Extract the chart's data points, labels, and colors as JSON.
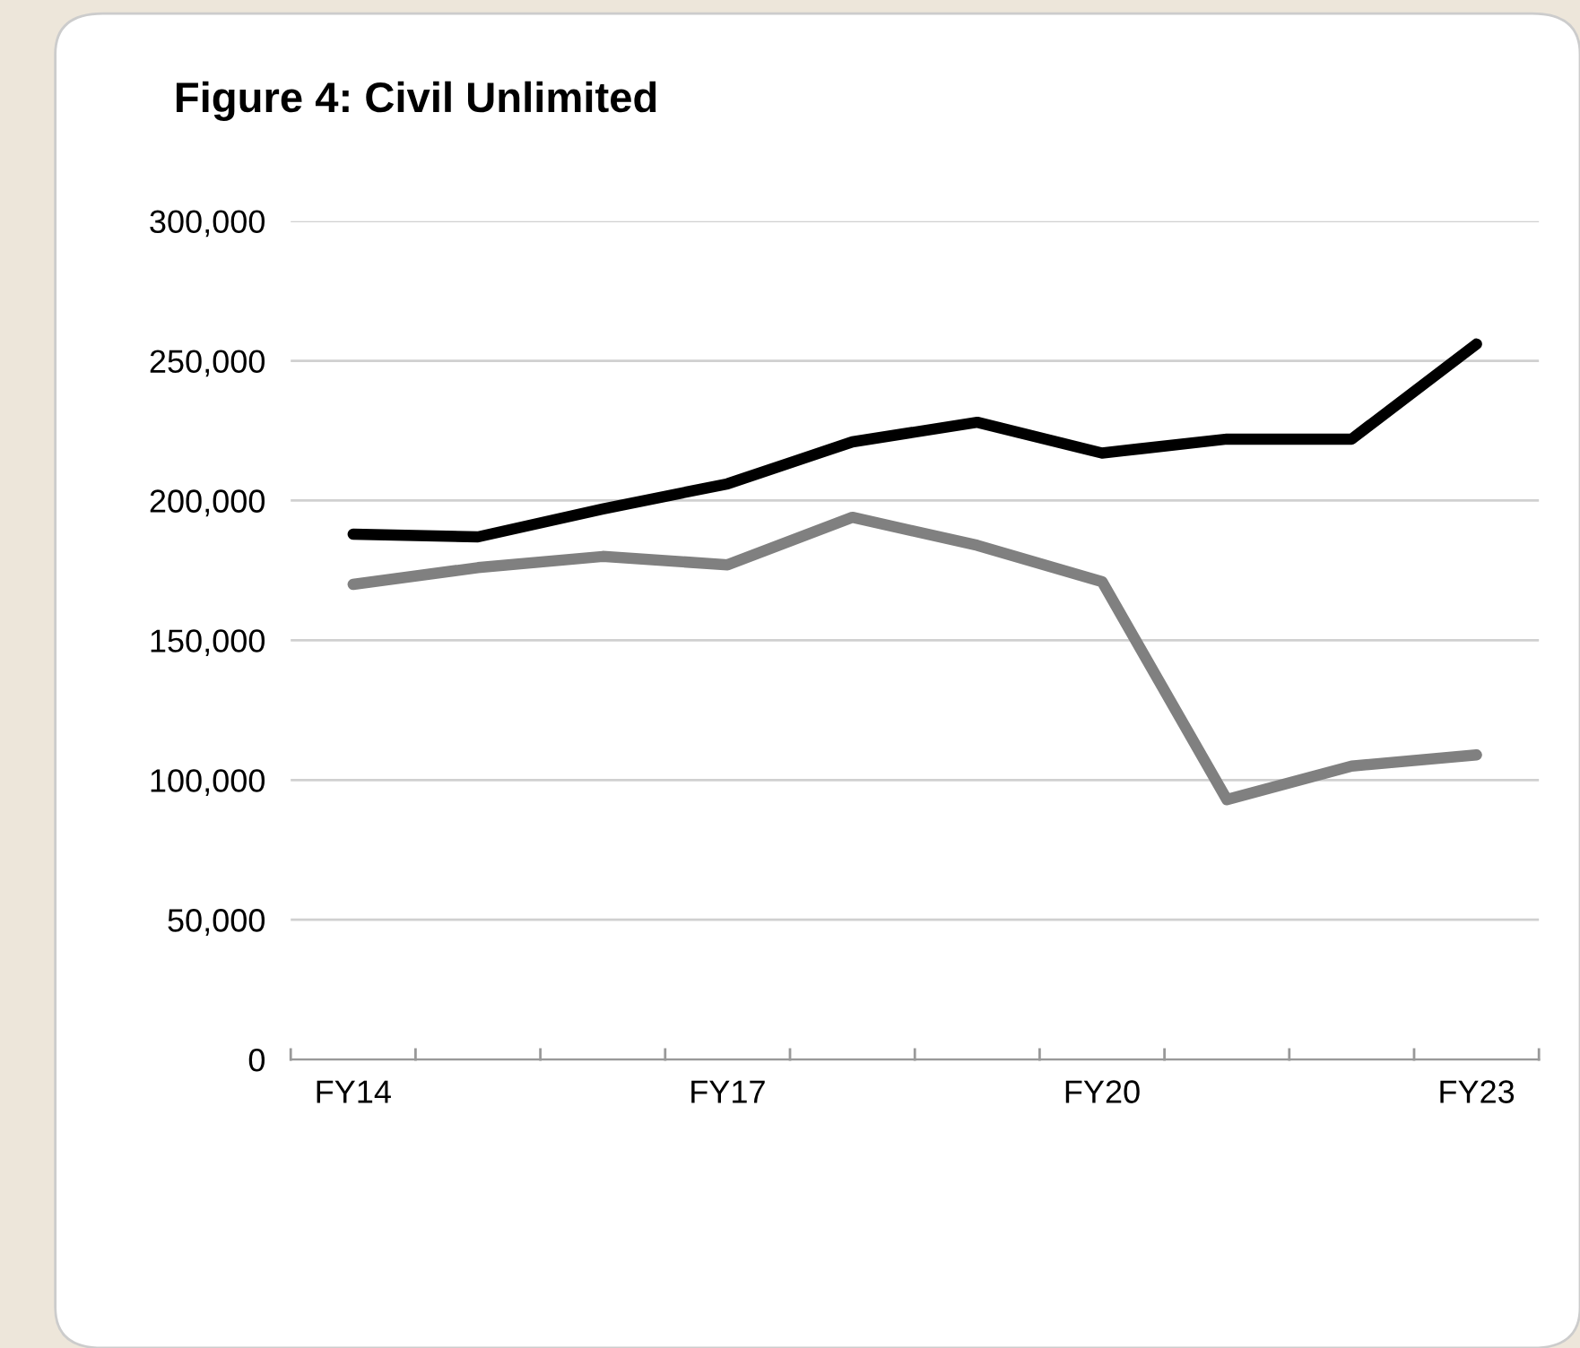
{
  "chart_data": {
    "type": "line",
    "title": "Figure 4: Civil Unlimited",
    "categories": [
      "FY14",
      null,
      null,
      "FY17",
      null,
      null,
      "FY20",
      null,
      null,
      "FY23"
    ],
    "series": [
      {
        "color": "#000000",
        "values": [
          188000,
          187000,
          197000,
          206000,
          221000,
          228000,
          217000,
          222000,
          222000,
          256000
        ]
      },
      {
        "color": "#808080",
        "values": [
          170000,
          176000,
          180000,
          177000,
          194000,
          184000,
          171000,
          93000,
          105000,
          109000
        ]
      }
    ],
    "ylim": [
      0,
      300000
    ],
    "yticks": [
      {
        "value": 0,
        "label": "0"
      },
      {
        "value": 50000,
        "label": "50,000"
      },
      {
        "value": 100000,
        "label": "100,000"
      },
      {
        "value": 150000,
        "label": "150,000"
      },
      {
        "value": 200000,
        "label": "200,000"
      },
      {
        "value": 250000,
        "label": "250,000"
      },
      {
        "value": 300000,
        "label": "300,000"
      }
    ],
    "grid": "y",
    "marker": "none",
    "line_style": "solid"
  }
}
